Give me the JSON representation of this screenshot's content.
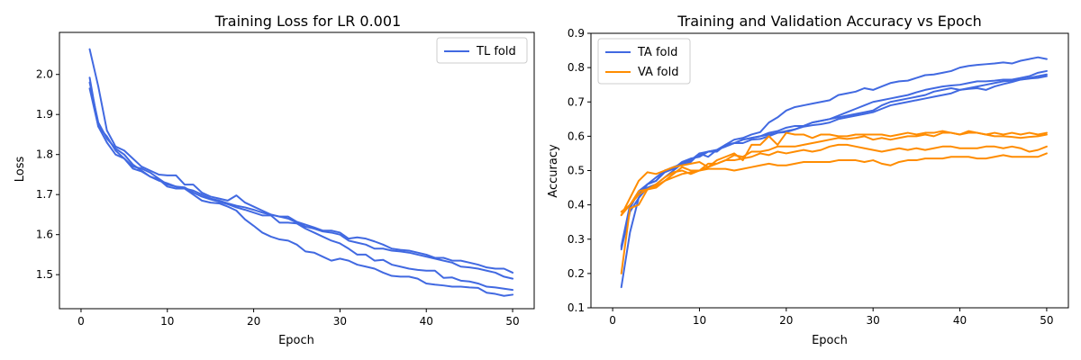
{
  "colors": {
    "train": "#4169e1",
    "valid": "#ff8c00"
  },
  "chart_data": [
    {
      "type": "line",
      "title": "Training Loss for LR 0.001",
      "xlabel": "Epoch",
      "ylabel": "Loss",
      "xlim": [
        -2.5,
        52.5
      ],
      "ylim": [
        1.415,
        2.105
      ],
      "xticks": [
        0,
        10,
        20,
        30,
        40,
        50
      ],
      "yticks": [
        1.5,
        1.6,
        1.7,
        1.8,
        1.9,
        2.0
      ],
      "ytick_labels": [
        "1.5",
        "1.6",
        "1.7",
        "1.8",
        "1.9",
        "2.0"
      ],
      "legend": {
        "position": "top-right",
        "entries": [
          {
            "label": "TL fold",
            "color": "#4169e1"
          }
        ]
      },
      "series": [
        {
          "color": "#4169e1",
          "x_start": 1,
          "values": [
            2.063,
            1.97,
            1.86,
            1.82,
            1.81,
            1.79,
            1.77,
            1.76,
            1.75,
            1.748,
            1.748,
            1.725,
            1.725,
            1.705,
            1.695,
            1.69,
            1.685,
            1.698,
            1.68,
            1.67,
            1.66,
            1.65,
            1.645,
            1.645,
            1.632,
            1.625,
            1.618,
            1.61,
            1.61,
            1.605,
            1.59,
            1.593,
            1.59,
            1.583,
            1.575,
            1.565,
            1.562,
            1.56,
            1.555,
            1.55,
            1.542,
            1.542,
            1.535,
            1.535,
            1.53,
            1.525,
            1.518,
            1.515,
            1.515,
            1.505
          ]
        },
        {
          "color": "#4169e1",
          "x_start": 1,
          "values": [
            1.992,
            1.87,
            1.845,
            1.81,
            1.79,
            1.77,
            1.765,
            1.755,
            1.74,
            1.725,
            1.72,
            1.715,
            1.71,
            1.7,
            1.69,
            1.685,
            1.678,
            1.672,
            1.668,
            1.662,
            1.655,
            1.65,
            1.645,
            1.64,
            1.63,
            1.62,
            1.615,
            1.608,
            1.605,
            1.6,
            1.585,
            1.58,
            1.575,
            1.565,
            1.565,
            1.56,
            1.558,
            1.555,
            1.55,
            1.545,
            1.54,
            1.535,
            1.53,
            1.52,
            1.518,
            1.515,
            1.51,
            1.505,
            1.495,
            1.49
          ]
        },
        {
          "color": "#4169e1",
          "x_start": 1,
          "values": [
            1.98,
            1.88,
            1.84,
            1.815,
            1.8,
            1.775,
            1.76,
            1.745,
            1.735,
            1.728,
            1.72,
            1.718,
            1.705,
            1.695,
            1.688,
            1.682,
            1.676,
            1.668,
            1.662,
            1.655,
            1.648,
            1.648,
            1.63,
            1.63,
            1.628,
            1.615,
            1.605,
            1.595,
            1.585,
            1.578,
            1.565,
            1.55,
            1.55,
            1.535,
            1.537,
            1.525,
            1.52,
            1.515,
            1.512,
            1.51,
            1.51,
            1.492,
            1.493,
            1.485,
            1.483,
            1.478,
            1.47,
            1.468,
            1.465,
            1.462
          ]
        },
        {
          "color": "#4169e1",
          "x_start": 1,
          "values": [
            1.965,
            1.87,
            1.83,
            1.8,
            1.79,
            1.765,
            1.758,
            1.745,
            1.738,
            1.72,
            1.715,
            1.715,
            1.7,
            1.685,
            1.68,
            1.678,
            1.67,
            1.66,
            1.638,
            1.622,
            1.605,
            1.595,
            1.588,
            1.585,
            1.575,
            1.558,
            1.555,
            1.545,
            1.535,
            1.54,
            1.535,
            1.525,
            1.52,
            1.515,
            1.505,
            1.497,
            1.495,
            1.495,
            1.49,
            1.478,
            1.475,
            1.473,
            1.47,
            1.47,
            1.468,
            1.467,
            1.455,
            1.452,
            1.447,
            1.45
          ]
        }
      ]
    },
    {
      "type": "line",
      "title": "Training and Validation Accuracy vs Epoch",
      "xlabel": "Epoch",
      "ylabel": "Accuracy",
      "xlim": [
        -2.5,
        52.5
      ],
      "ylim": [
        0.1,
        0.9
      ],
      "xticks": [
        0,
        10,
        20,
        30,
        40,
        50
      ],
      "yticks": [
        0.1,
        0.2,
        0.3,
        0.4,
        0.5,
        0.6,
        0.7,
        0.8,
        0.9
      ],
      "ytick_labels": [
        "0.1",
        "0.2",
        "0.3",
        "0.4",
        "0.5",
        "0.6",
        "0.7",
        "0.8",
        "0.9"
      ],
      "legend": {
        "position": "top-left",
        "entries": [
          {
            "label": "TA fold",
            "color": "#4169e1"
          },
          {
            "label": "VA fold",
            "color": "#ff8c00"
          }
        ]
      },
      "series": [
        {
          "color": "#4169e1",
          "x_start": 1,
          "values": [
            0.27,
            0.38,
            0.42,
            0.46,
            0.47,
            0.5,
            0.51,
            0.52,
            0.53,
            0.55,
            0.555,
            0.56,
            0.575,
            0.59,
            0.595,
            0.605,
            0.612,
            0.64,
            0.655,
            0.675,
            0.685,
            0.69,
            0.695,
            0.7,
            0.705,
            0.72,
            0.725,
            0.73,
            0.74,
            0.735,
            0.745,
            0.755,
            0.76,
            0.762,
            0.77,
            0.778,
            0.78,
            0.785,
            0.79,
            0.8,
            0.805,
            0.808,
            0.81,
            0.812,
            0.815,
            0.812,
            0.82,
            0.825,
            0.83,
            0.825
          ]
        },
        {
          "color": "#4169e1",
          "x_start": 1,
          "values": [
            0.28,
            0.4,
            0.43,
            0.46,
            0.48,
            0.5,
            0.505,
            0.52,
            0.53,
            0.545,
            0.555,
            0.56,
            0.57,
            0.58,
            0.59,
            0.595,
            0.6,
            0.605,
            0.61,
            0.615,
            0.62,
            0.63,
            0.64,
            0.645,
            0.65,
            0.655,
            0.66,
            0.665,
            0.67,
            0.675,
            0.69,
            0.7,
            0.705,
            0.71,
            0.715,
            0.72,
            0.73,
            0.735,
            0.74,
            0.735,
            0.738,
            0.74,
            0.735,
            0.745,
            0.752,
            0.758,
            0.765,
            0.77,
            0.775,
            0.78
          ]
        },
        {
          "color": "#4169e1",
          "x_start": 1,
          "values": [
            0.16,
            0.32,
            0.42,
            0.45,
            0.46,
            0.48,
            0.5,
            0.52,
            0.525,
            0.55,
            0.54,
            0.56,
            0.57,
            0.58,
            0.58,
            0.59,
            0.592,
            0.6,
            0.61,
            0.612,
            0.62,
            0.628,
            0.632,
            0.635,
            0.64,
            0.65,
            0.655,
            0.66,
            0.665,
            0.67,
            0.68,
            0.69,
            0.695,
            0.7,
            0.705,
            0.71,
            0.715,
            0.72,
            0.725,
            0.735,
            0.74,
            0.745,
            0.75,
            0.755,
            0.76,
            0.762,
            0.765,
            0.768,
            0.77,
            0.775
          ]
        },
        {
          "color": "#4169e1",
          "x_start": 1,
          "values": [
            0.275,
            0.39,
            0.44,
            0.46,
            0.47,
            0.495,
            0.505,
            0.525,
            0.535,
            0.54,
            0.555,
            0.555,
            0.575,
            0.58,
            0.59,
            0.595,
            0.6,
            0.61,
            0.615,
            0.625,
            0.63,
            0.63,
            0.64,
            0.645,
            0.65,
            0.66,
            0.67,
            0.68,
            0.69,
            0.7,
            0.705,
            0.71,
            0.715,
            0.72,
            0.728,
            0.735,
            0.74,
            0.745,
            0.748,
            0.75,
            0.755,
            0.76,
            0.76,
            0.762,
            0.765,
            0.765,
            0.77,
            0.775,
            0.785,
            0.79
          ]
        },
        {
          "color": "#ff8c00",
          "x_start": 1,
          "values": [
            0.37,
            0.42,
            0.47,
            0.495,
            0.49,
            0.5,
            0.51,
            0.515,
            0.52,
            0.525,
            0.51,
            0.53,
            0.54,
            0.55,
            0.53,
            0.575,
            0.575,
            0.6,
            0.575,
            0.61,
            0.605,
            0.605,
            0.595,
            0.605,
            0.605,
            0.6,
            0.6,
            0.605,
            0.605,
            0.605,
            0.605,
            0.6,
            0.605,
            0.61,
            0.605,
            0.61,
            0.61,
            0.615,
            0.61,
            0.605,
            0.615,
            0.61,
            0.605,
            0.61,
            0.605,
            0.61,
            0.605,
            0.61,
            0.605,
            0.61
          ]
        },
        {
          "color": "#ff8c00",
          "x_start": 1,
          "values": [
            0.38,
            0.4,
            0.44,
            0.445,
            0.45,
            0.47,
            0.49,
            0.51,
            0.5,
            0.5,
            0.52,
            0.52,
            0.53,
            0.545,
            0.54,
            0.555,
            0.555,
            0.56,
            0.57,
            0.57,
            0.57,
            0.575,
            0.58,
            0.585,
            0.59,
            0.595,
            0.592,
            0.595,
            0.6,
            0.59,
            0.595,
            0.59,
            0.595,
            0.6,
            0.6,
            0.605,
            0.6,
            0.61,
            0.61,
            0.605,
            0.61,
            0.61,
            0.605,
            0.6,
            0.6,
            0.598,
            0.595,
            0.598,
            0.6,
            0.605
          ]
        },
        {
          "color": "#ff8c00",
          "x_start": 1,
          "values": [
            0.2,
            0.39,
            0.4,
            0.445,
            0.46,
            0.48,
            0.495,
            0.5,
            0.49,
            0.5,
            0.51,
            0.52,
            0.53,
            0.53,
            0.535,
            0.54,
            0.55,
            0.545,
            0.555,
            0.55,
            0.555,
            0.56,
            0.555,
            0.56,
            0.57,
            0.575,
            0.575,
            0.57,
            0.565,
            0.56,
            0.555,
            0.56,
            0.565,
            0.56,
            0.565,
            0.56,
            0.565,
            0.57,
            0.57,
            0.565,
            0.565,
            0.565,
            0.57,
            0.57,
            0.565,
            0.57,
            0.565,
            0.555,
            0.56,
            0.57
          ]
        },
        {
          "color": "#ff8c00",
          "x_start": 1,
          "values": [
            0.37,
            0.4,
            0.43,
            0.445,
            0.455,
            0.47,
            0.48,
            0.49,
            0.495,
            0.5,
            0.505,
            0.505,
            0.505,
            0.5,
            0.505,
            0.51,
            0.515,
            0.52,
            0.515,
            0.515,
            0.52,
            0.525,
            0.525,
            0.525,
            0.525,
            0.53,
            0.53,
            0.53,
            0.525,
            0.53,
            0.52,
            0.515,
            0.525,
            0.53,
            0.53,
            0.535,
            0.535,
            0.535,
            0.54,
            0.54,
            0.54,
            0.535,
            0.535,
            0.54,
            0.545,
            0.54,
            0.54,
            0.54,
            0.54,
            0.55
          ]
        }
      ]
    }
  ]
}
